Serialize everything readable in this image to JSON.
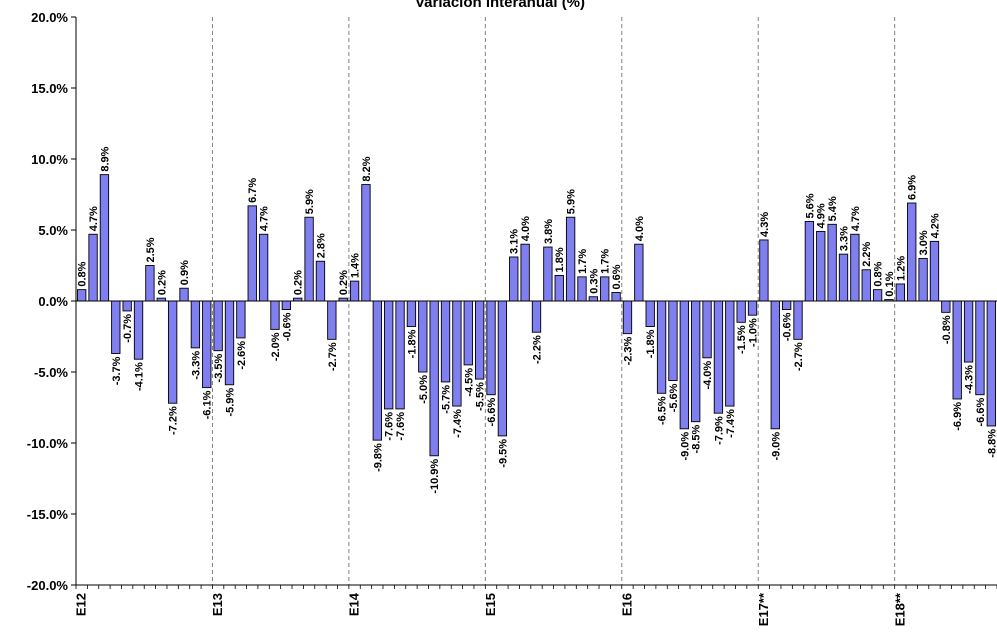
{
  "chart_data": {
    "type": "bar",
    "title": "Variación interanual (%)",
    "xlabel": "",
    "ylabel": "",
    "ylim": [
      -20,
      20
    ],
    "yticks": [
      "20.0%",
      "15.0%",
      "10.0%",
      "5.0%",
      "0.0%",
      "-5.0%",
      "-10.0%",
      "-15.0%",
      "-20.0%"
    ],
    "ytick_values": [
      20,
      15,
      10,
      5,
      0,
      -5,
      -10,
      -15,
      -20
    ],
    "xtick_labels": [
      "E12",
      "E13",
      "E14",
      "E15",
      "E16",
      "E17**",
      "E18**"
    ],
    "xtick_indices": [
      0,
      12,
      24,
      36,
      48,
      60,
      72
    ],
    "grid": "vertical dashed at year starts",
    "bar_color": "#7F7FEF",
    "series": [
      {
        "values": [
          0.8,
          4.7,
          8.9,
          -3.7,
          -0.7,
          -4.1,
          2.5,
          0.2,
          -7.2,
          0.9,
          -3.3,
          -6.1,
          -3.5,
          -5.9,
          -2.6,
          6.7,
          4.7,
          -2.0,
          -0.6,
          0.2,
          5.9,
          2.8,
          -2.7,
          0.2,
          1.4,
          8.2,
          -9.8,
          -7.6,
          -7.6,
          -1.8,
          -5.0,
          -10.9,
          -5.7,
          -7.4,
          -4.5,
          -5.5,
          -6.6,
          -9.5,
          3.1,
          4.0,
          -2.2,
          3.8,
          1.8,
          5.9,
          1.7,
          0.3,
          1.7,
          0.6,
          -2.3,
          4.0,
          -1.8,
          -6.5,
          -5.6,
          -9.0,
          -8.5,
          -4.0,
          -7.9,
          -7.4,
          -1.5,
          -1.0,
          4.3,
          -9.0,
          -0.6,
          -2.7,
          5.6,
          4.9,
          5.4,
          3.3,
          4.7,
          2.2,
          0.8,
          0.1,
          1.2,
          6.9,
          3.0,
          4.2,
          -0.8,
          -6.9,
          -4.3,
          -6.6,
          -8.8
        ],
        "labels": [
          "0.8%",
          "4.7%",
          "8.9%",
          "-3.7%",
          "-0.7%",
          "-4.1%",
          "2.5%",
          "0.2%",
          "-7.2%",
          "0.9%",
          "-3.3%",
          "-6.1%",
          "-3.5%",
          "-5.9%",
          "-2.6%",
          "6.7%",
          "4.7%",
          "-2.0%",
          "-0.6%",
          "0.2%",
          "5.9%",
          "2.8%",
          "-2.7%",
          "0.2%",
          "1.4%",
          "8.2%",
          "-9.8%",
          "-7.6%",
          "-7.6%",
          "-1.8%",
          "-5.0%",
          "-10.9%",
          "-5.7%",
          "-7.4%",
          "-4.5%",
          "-5.5%",
          "-6.6%",
          "-9.5%",
          "3.1%",
          "4.0%",
          "-2.2%",
          "3.8%",
          "1.8%",
          "5.9%",
          "1.7%",
          "0.3%",
          "1.7%",
          "0.6%",
          "-2.3%",
          "4.0%",
          "-1.8%",
          "-6.5%",
          "-5.6%",
          "-9.0%",
          "-8.5%",
          "-4.0%",
          "-7.9%",
          "-7.4%",
          "-1.5%",
          "-1.0%",
          "4.3%",
          "-9.0%",
          "-0.6%",
          "-2.7%",
          "5.6%",
          "4.9%",
          "5.4%",
          "3.3%",
          "4.7%",
          "2.2%",
          "0.8%",
          "0.1%",
          "1.2%",
          "6.9%",
          "3.0%",
          "4.2%",
          "-0.8%",
          "-6.9%",
          "-4.3%",
          "-6.6%",
          "-8.8%"
        ]
      }
    ]
  }
}
